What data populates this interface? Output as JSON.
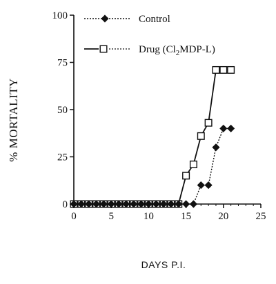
{
  "chart_data": {
    "type": "line",
    "title": "",
    "xlabel": "DAYS P.I.",
    "ylabel": "% MORTALITY",
    "xlim": [
      0,
      25
    ],
    "ylim": [
      0,
      100
    ],
    "xticks": [
      "0",
      "5",
      "10",
      "15",
      "20",
      "25"
    ],
    "yticks": [
      "0",
      "25",
      "50",
      "75",
      "100"
    ],
    "grid": false,
    "legend_position": "top-left",
    "series": [
      {
        "name": "Control",
        "marker": "filled-diamond",
        "line_style": "dotted",
        "color": "#111111",
        "x": [
          0,
          1,
          2,
          3,
          4,
          5,
          6,
          7,
          8,
          9,
          10,
          11,
          12,
          13,
          14,
          15,
          16,
          17,
          18,
          19,
          20,
          21
        ],
        "y": [
          0,
          0,
          0,
          0,
          0,
          0,
          0,
          0,
          0,
          0,
          0,
          0,
          0,
          0,
          0,
          0,
          0,
          10,
          10,
          30,
          40,
          40
        ]
      },
      {
        "name": "Drug (Cl2MDP-L)",
        "marker": "open-square",
        "line_style": "solid-then-dotted",
        "color": "#111111",
        "x": [
          0,
          1,
          2,
          3,
          4,
          5,
          6,
          7,
          8,
          9,
          10,
          11,
          12,
          13,
          14,
          15,
          16,
          17,
          18,
          19,
          20,
          21
        ],
        "y": [
          0,
          0,
          0,
          0,
          0,
          0,
          0,
          0,
          0,
          0,
          0,
          0,
          0,
          0,
          0,
          15,
          21,
          36,
          43,
          71,
          71,
          71
        ]
      }
    ]
  }
}
